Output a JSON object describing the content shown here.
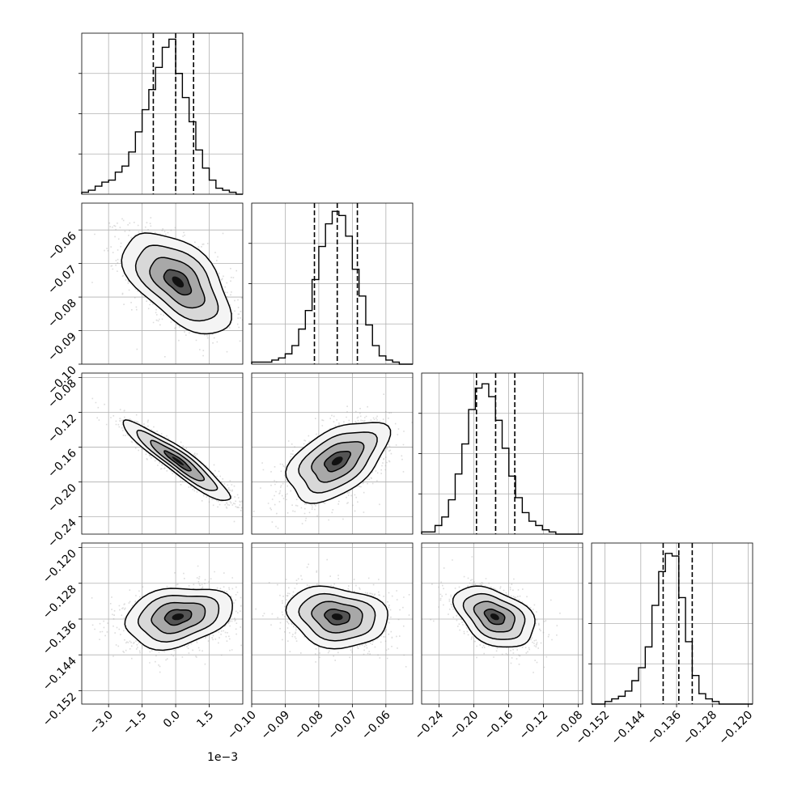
{
  "chart_data": {
    "type": "corner",
    "parameters": 4,
    "offset_label": "1e−3",
    "axes_ticks": [
      {
        "values": [
          -3.0,
          -1.5,
          0.0,
          1.5
        ],
        "labels": [
          "−3.0",
          "−1.5",
          "0.0",
          "1.5"
        ],
        "range": [
          -4.2,
          3.0
        ]
      },
      {
        "values": [
          -0.1,
          -0.09,
          -0.08,
          -0.07,
          -0.06
        ],
        "labels": [
          "−0.10",
          "−0.09",
          "−0.08",
          "−0.07",
          "−0.06"
        ],
        "range": [
          -0.1,
          -0.052
        ]
      },
      {
        "values": [
          -0.24,
          -0.2,
          -0.16,
          -0.12,
          -0.08
        ],
        "labels": [
          "−0.24",
          "−0.20",
          "−0.16",
          "−0.12",
          "−0.08"
        ],
        "range": [
          -0.26,
          -0.075
        ]
      },
      {
        "values": [
          -0.152,
          -0.144,
          -0.136,
          -0.128,
          -0.12
        ],
        "labels": [
          "−0.152",
          "−0.144",
          "−0.136",
          "−0.128",
          "−0.120"
        ],
        "range": [
          -0.155,
          -0.119
        ]
      }
    ],
    "marginals": [
      {
        "bin_range": [
          -4.2,
          3.0
        ],
        "counts": [
          1,
          2,
          4,
          6,
          7,
          11,
          14,
          21,
          31,
          42,
          52,
          63,
          73,
          77,
          60,
          48,
          36,
          22,
          13,
          7,
          3,
          2,
          1,
          0
        ],
        "ymax": 80,
        "quantiles": [
          -1.0,
          0.0,
          0.8
        ]
      },
      {
        "bin_range": [
          -0.1,
          -0.052
        ],
        "counts": [
          1,
          1,
          1,
          2,
          3,
          5,
          9,
          17,
          26,
          41,
          57,
          68,
          74,
          72,
          62,
          46,
          33,
          19,
          9,
          4,
          2,
          1,
          0,
          0
        ],
        "ymax": 78,
        "quantiles": [
          -0.0813,
          -0.0745,
          -0.0685
        ]
      },
      {
        "bin_range": [
          -0.26,
          -0.075
        ],
        "counts": [
          1,
          1,
          4,
          8,
          16,
          28,
          42,
          58,
          68,
          70,
          64,
          53,
          40,
          27,
          17,
          10,
          6,
          4,
          2,
          1,
          0,
          0,
          0,
          0
        ],
        "ymax": 75,
        "quantiles": [
          -0.197,
          -0.175,
          -0.153
        ]
      },
      {
        "bin_range": [
          -0.155,
          -0.119
        ],
        "counts": [
          0,
          0,
          1,
          2,
          3,
          5,
          9,
          14,
          22,
          38,
          51,
          58,
          57,
          41,
          24,
          11,
          4,
          2,
          1,
          0,
          0,
          0,
          0,
          0
        ],
        "ymax": 62,
        "quantiles": [
          -0.139,
          -0.1355,
          -0.1325
        ]
      }
    ],
    "pairs": [
      {
        "row": 1,
        "col": 0,
        "cx": 0.1,
        "cy": -0.0755,
        "sx": 1.2,
        "sy": 0.0075,
        "rho": -0.55
      },
      {
        "row": 2,
        "col": 0,
        "cx": 0.1,
        "cy": -0.176,
        "sx": 1.2,
        "sy": 0.023,
        "rho": -0.93
      },
      {
        "row": 2,
        "col": 1,
        "cx": -0.0745,
        "cy": -0.176,
        "sx": 0.0075,
        "sy": 0.023,
        "rho": 0.5
      },
      {
        "row": 3,
        "col": 0,
        "cx": 0.1,
        "cy": -0.1355,
        "sx": 1.2,
        "sy": 0.0034,
        "rho": 0.25
      },
      {
        "row": 3,
        "col": 1,
        "cx": -0.0745,
        "cy": -0.1355,
        "sx": 0.0075,
        "sy": 0.0034,
        "rho": -0.15
      },
      {
        "row": 3,
        "col": 2,
        "cx": -0.176,
        "cy": -0.1355,
        "sx": 0.023,
        "sy": 0.0034,
        "rho": -0.4
      }
    ],
    "contour_levels_sigma": [
      0.5,
      1.0,
      1.5,
      2.0
    ]
  }
}
